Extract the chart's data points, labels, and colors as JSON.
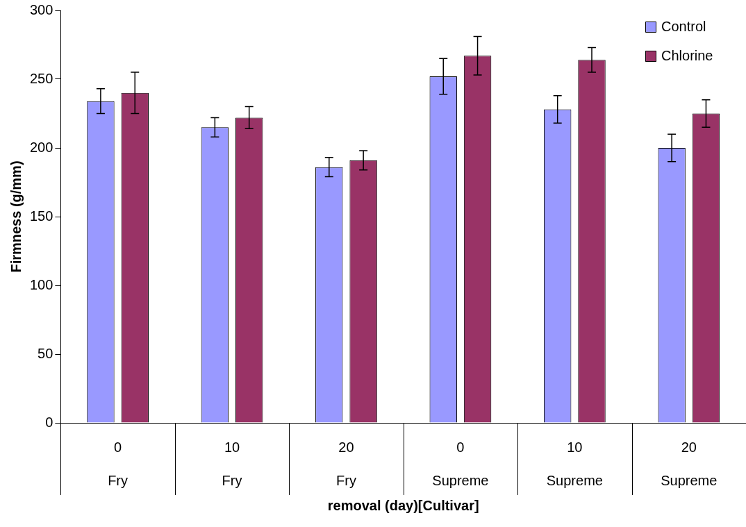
{
  "chart_data": {
    "type": "bar",
    "xlabel": "removal (day)[Cultivar]",
    "ylabel": "Firmness (g/mm)",
    "categories": [
      "0\nFry",
      "10\nFry",
      "20\nFry",
      "0\nSupreme",
      "10\nSupreme",
      "20\nSupreme"
    ],
    "series": [
      {
        "name": "Control",
        "color": "#9999ff",
        "values": [
          234,
          215,
          186,
          252,
          228,
          200
        ],
        "errors": [
          9,
          7,
          7,
          13,
          10,
          10
        ]
      },
      {
        "name": "Chlorine",
        "color": "#993366",
        "values": [
          240,
          222,
          191,
          267,
          264,
          225
        ],
        "errors": [
          15,
          8,
          7,
          14,
          9,
          10
        ]
      }
    ],
    "ylim": [
      0,
      300
    ],
    "yticks": [
      0,
      50,
      100,
      150,
      200,
      250,
      300
    ],
    "grid": false,
    "legend": "top right"
  }
}
